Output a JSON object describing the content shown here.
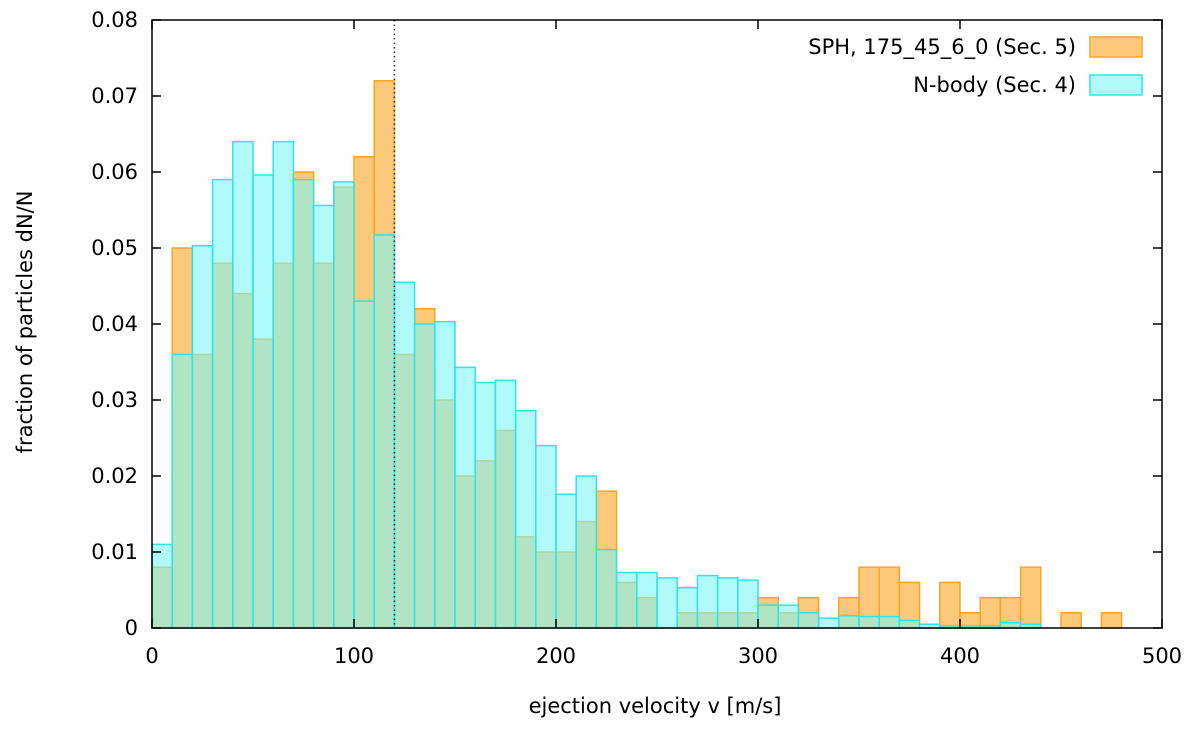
{
  "chart_data": {
    "type": "bar",
    "title": "",
    "xlabel": "ejection velocity v [m/s]",
    "ylabel": "fraction of particles dN/N",
    "xlim": [
      0,
      500
    ],
    "ylim": [
      0,
      0.08
    ],
    "xticks": [
      0,
      100,
      200,
      300,
      400,
      500
    ],
    "yticks": [
      0,
      0.01,
      0.02,
      0.03,
      0.04,
      0.05,
      0.06,
      0.07,
      0.08
    ],
    "xtick_labels": [
      "0",
      "100",
      "200",
      "300",
      "400",
      "500"
    ],
    "ytick_labels": [
      "0",
      "0.01",
      "0.02",
      "0.03",
      "0.04",
      "0.05",
      "0.06",
      "0.07",
      "0.08"
    ],
    "bin_width": 10,
    "vline_x": 120,
    "legend_position": "top-right",
    "series": [
      {
        "name": "SPH, 175_45_6_0 (Sec. 5)",
        "fill": "#fcc97a",
        "stroke": "#f5a623",
        "bins": [
          [
            0,
            0.008
          ],
          [
            10,
            0.05
          ],
          [
            20,
            0.036
          ],
          [
            30,
            0.048
          ],
          [
            40,
            0.044
          ],
          [
            50,
            0.038
          ],
          [
            60,
            0.048
          ],
          [
            70,
            0.06
          ],
          [
            80,
            0.048
          ],
          [
            90,
            0.058
          ],
          [
            100,
            0.062
          ],
          [
            110,
            0.072
          ],
          [
            120,
            0.036
          ],
          [
            130,
            0.042
          ],
          [
            140,
            0.03
          ],
          [
            150,
            0.02
          ],
          [
            160,
            0.022
          ],
          [
            170,
            0.026
          ],
          [
            180,
            0.012
          ],
          [
            190,
            0.01
          ],
          [
            200,
            0.01
          ],
          [
            210,
            0.014
          ],
          [
            220,
            0.018
          ],
          [
            230,
            0.006
          ],
          [
            240,
            0.004
          ],
          [
            250,
            0.0
          ],
          [
            260,
            0.002
          ],
          [
            270,
            0.002
          ],
          [
            280,
            0.002
          ],
          [
            290,
            0.002
          ],
          [
            300,
            0.004
          ],
          [
            310,
            0.002
          ],
          [
            320,
            0.004
          ],
          [
            330,
            0.0
          ],
          [
            340,
            0.004
          ],
          [
            350,
            0.008
          ],
          [
            360,
            0.008
          ],
          [
            370,
            0.006
          ],
          [
            380,
            0.0
          ],
          [
            390,
            0.006
          ],
          [
            400,
            0.002
          ],
          [
            410,
            0.004
          ],
          [
            420,
            0.004
          ],
          [
            430,
            0.008
          ],
          [
            440,
            0.0
          ],
          [
            450,
            0.002
          ],
          [
            460,
            0.0
          ],
          [
            470,
            0.002
          ]
        ]
      },
      {
        "name": "N-body (Sec. 4)",
        "fill": "#7ef7f7",
        "stroke": "#2ee6e6",
        "bins": [
          [
            0,
            0.011
          ],
          [
            10,
            0.036
          ],
          [
            20,
            0.0503
          ],
          [
            30,
            0.059
          ],
          [
            40,
            0.064
          ],
          [
            50,
            0.0596
          ],
          [
            60,
            0.064
          ],
          [
            70,
            0.059
          ],
          [
            80,
            0.0556
          ],
          [
            90,
            0.0587
          ],
          [
            100,
            0.043
          ],
          [
            110,
            0.0517
          ],
          [
            120,
            0.0455
          ],
          [
            130,
            0.04
          ],
          [
            140,
            0.0403
          ],
          [
            150,
            0.0343
          ],
          [
            160,
            0.0323
          ],
          [
            170,
            0.0326
          ],
          [
            180,
            0.0286
          ],
          [
            190,
            0.024
          ],
          [
            200,
            0.0176
          ],
          [
            210,
            0.02
          ],
          [
            220,
            0.0103
          ],
          [
            230,
            0.0073
          ],
          [
            240,
            0.0073
          ],
          [
            250,
            0.0066
          ],
          [
            260,
            0.0053
          ],
          [
            270,
            0.0069
          ],
          [
            280,
            0.0066
          ],
          [
            290,
            0.0063
          ],
          [
            300,
            0.003
          ],
          [
            310,
            0.003
          ],
          [
            320,
            0.002
          ],
          [
            330,
            0.0013
          ],
          [
            340,
            0.0016
          ],
          [
            350,
            0.0015
          ],
          [
            360,
            0.0015
          ],
          [
            370,
            0.001
          ],
          [
            380,
            0.0005
          ],
          [
            390,
            0.0003
          ],
          [
            400,
            0.0003
          ],
          [
            410,
            0.0003
          ],
          [
            420,
            0.0007
          ],
          [
            430,
            0.0005
          ]
        ]
      }
    ]
  }
}
